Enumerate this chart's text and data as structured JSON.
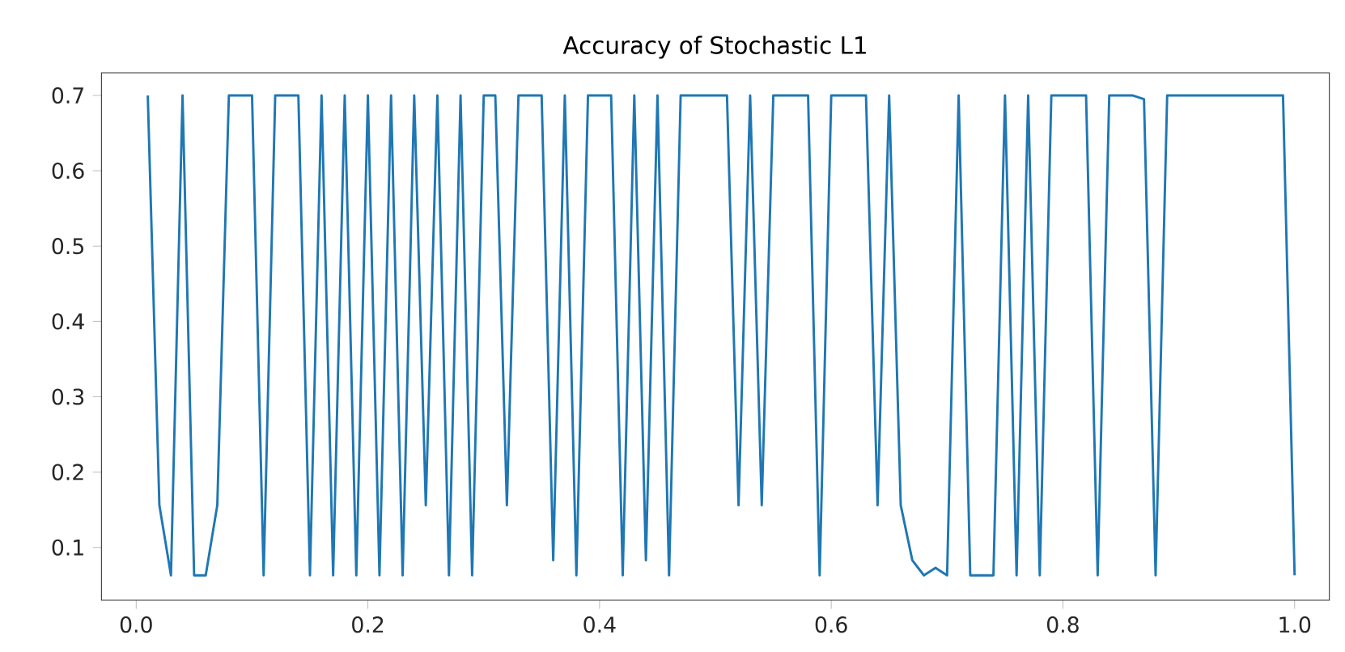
{
  "chart_data": {
    "type": "line",
    "title": "Accuracy of Stochastic L1",
    "x": [
      0.01,
      0.02,
      0.03,
      0.04,
      0.05,
      0.06,
      0.07,
      0.08,
      0.09,
      0.1,
      0.11,
      0.12,
      0.13,
      0.14,
      0.15,
      0.16,
      0.17,
      0.18,
      0.19,
      0.2,
      0.21,
      0.22,
      0.23,
      0.24,
      0.25,
      0.26,
      0.27,
      0.28,
      0.29,
      0.3,
      0.31,
      0.32,
      0.33,
      0.34,
      0.35,
      0.36,
      0.37,
      0.38,
      0.39,
      0.4,
      0.41,
      0.42,
      0.43,
      0.44,
      0.45,
      0.46,
      0.47,
      0.48,
      0.49,
      0.5,
      0.51,
      0.52,
      0.53,
      0.54,
      0.55,
      0.56,
      0.57,
      0.58,
      0.59,
      0.6,
      0.61,
      0.62,
      0.63,
      0.64,
      0.65,
      0.66,
      0.67,
      0.68,
      0.69,
      0.7,
      0.71,
      0.72,
      0.73,
      0.74,
      0.75,
      0.76,
      0.77,
      0.78,
      0.79,
      0.8,
      0.81,
      0.82,
      0.83,
      0.84,
      0.85,
      0.86,
      0.87,
      0.88,
      0.89,
      0.9,
      0.91,
      0.92,
      0.93,
      0.94,
      0.95,
      0.96,
      0.97,
      0.98,
      0.99,
      1.0
    ],
    "series": [
      {
        "color": "#1f77b4",
        "values": [
          0.7,
          0.156,
          0.063,
          0.7,
          0.063,
          0.063,
          0.156,
          0.7,
          0.7,
          0.7,
          0.063,
          0.7,
          0.7,
          0.7,
          0.063,
          0.7,
          0.063,
          0.7,
          0.063,
          0.7,
          0.063,
          0.7,
          0.063,
          0.7,
          0.156,
          0.7,
          0.063,
          0.7,
          0.063,
          0.7,
          0.7,
          0.156,
          0.7,
          0.7,
          0.7,
          0.083,
          0.7,
          0.063,
          0.7,
          0.7,
          0.7,
          0.063,
          0.7,
          0.083,
          0.7,
          0.063,
          0.7,
          0.7,
          0.7,
          0.7,
          0.7,
          0.156,
          0.7,
          0.156,
          0.7,
          0.7,
          0.7,
          0.7,
          0.063,
          0.7,
          0.7,
          0.7,
          0.7,
          0.156,
          0.7,
          0.156,
          0.083,
          0.063,
          0.073,
          0.063,
          0.7,
          0.063,
          0.063,
          0.063,
          0.7,
          0.063,
          0.7,
          0.063,
          0.7,
          0.7,
          0.7,
          0.7,
          0.063,
          0.7,
          0.7,
          0.7,
          0.695,
          0.063,
          0.7,
          0.7,
          0.7,
          0.7,
          0.7,
          0.7,
          0.7,
          0.7,
          0.7,
          0.7,
          0.7,
          0.063
        ]
      }
    ],
    "xlim": [
      -0.03,
      1.03
    ],
    "ylim": [
      0.03,
      0.73
    ],
    "xticks": [
      {
        "value": 0,
        "label": "0.0"
      },
      0.2,
      0.4,
      0.6,
      0.8,
      {
        "value": 1.0,
        "label": "1.0"
      }
    ],
    "yticks": [
      0.1,
      0.2,
      0.3,
      0.4,
      0.5,
      0.6,
      0.7
    ],
    "grid": false,
    "marker": "none",
    "line_style": "solid"
  }
}
